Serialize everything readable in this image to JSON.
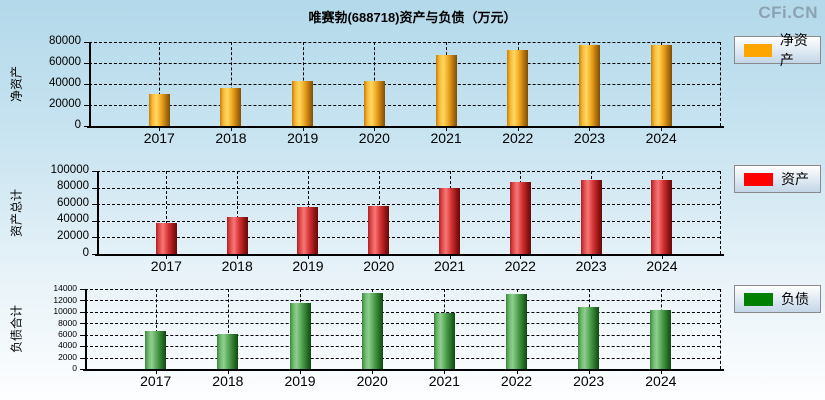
{
  "page": {
    "title": "唯赛勃(688718)资产与负债（万元）",
    "watermark": "CFi.CN"
  },
  "chart_data": [
    {
      "type": "bar",
      "ylabel": "净资产",
      "legend": "净资产",
      "legend_position": "right-top",
      "bar_color": "#FFA500",
      "grid": true,
      "categories": [
        "2017",
        "2018",
        "2019",
        "2020",
        "2021",
        "2022",
        "2023",
        "2024"
      ],
      "values": [
        30800,
        36200,
        43100,
        43300,
        68000,
        72200,
        77300,
        77100
      ],
      "ylim": [
        0,
        80000
      ],
      "ytick_step": 20000
    },
    {
      "type": "bar",
      "ylabel": "资产总计",
      "legend": "资产",
      "legend_position": "right-top",
      "bar_color": "#FF0000",
      "grid": true,
      "categories": [
        "2017",
        "2018",
        "2019",
        "2020",
        "2021",
        "2022",
        "2023",
        "2024"
      ],
      "values": [
        37500,
        44000,
        56500,
        57500,
        80000,
        86800,
        88800,
        88600
      ],
      "ylim": [
        0,
        100000
      ],
      "ytick_step": 20000
    },
    {
      "type": "bar",
      "ylabel": "负债合计",
      "legend": "负债",
      "legend_position": "right-top",
      "bar_color": "#008000",
      "grid": true,
      "categories": [
        "2017",
        "2018",
        "2019",
        "2020",
        "2021",
        "2022",
        "2023",
        "2024"
      ],
      "values": [
        6600,
        6200,
        11500,
        13300,
        9800,
        13100,
        10900,
        10300
      ],
      "ylim": [
        0,
        14000
      ],
      "ytick_step": 2000
    }
  ]
}
